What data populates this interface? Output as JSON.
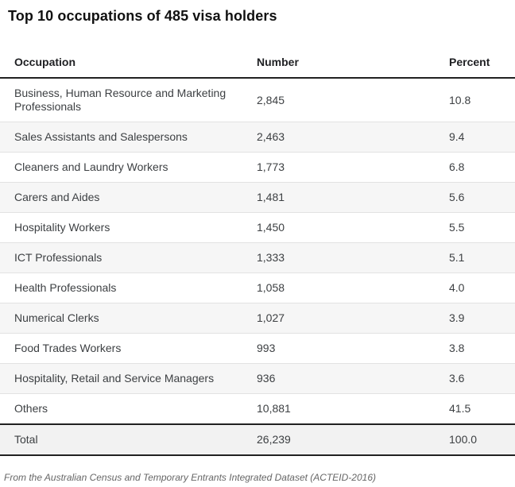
{
  "title": "Top 10 occupations of 485 visa holders",
  "table": {
    "columns": [
      "Occupation",
      "Number",
      "Percent"
    ],
    "rows": [
      [
        "Business, Human Resource and Marketing Professionals",
        "2,845",
        "10.8"
      ],
      [
        "Sales Assistants and Salespersons",
        "2,463",
        "9.4"
      ],
      [
        "Cleaners and Laundry Workers",
        "1,773",
        "6.8"
      ],
      [
        "Carers and Aides",
        "1,481",
        "5.6"
      ],
      [
        "Hospitality Workers",
        "1,450",
        "5.5"
      ],
      [
        "ICT Professionals",
        "1,333",
        "5.1"
      ],
      [
        "Health Professionals",
        "1,058",
        "4.0"
      ],
      [
        "Numerical Clerks",
        "1,027",
        "3.9"
      ],
      [
        "Food Trades Workers",
        "993",
        "3.8"
      ],
      [
        "Hospitality, Retail and Service Managers",
        "936",
        "3.6"
      ],
      [
        "Others",
        "10,881",
        "41.5"
      ]
    ],
    "total": [
      "Total",
      "26,239",
      "100.0"
    ]
  },
  "footer": "From the Australian Census and Temporary Entrants Integrated Dataset (ACTEID-2016)",
  "colors": {
    "header_border": "#212121",
    "row_divider": "#e2e2e2",
    "stripe_bg": "#f6f6f6",
    "total_bg": "#f2f2f2",
    "body_text": "#3d4043",
    "header_text": "#202124",
    "footer_text": "#666666"
  },
  "chart_data": {
    "type": "table",
    "title": "Top 10 occupations of 485 visa holders",
    "columns": [
      "Occupation",
      "Number",
      "Percent"
    ],
    "rows": [
      [
        "Business, Human Resource and Marketing Professionals",
        2845,
        10.8
      ],
      [
        "Sales Assistants and Salespersons",
        2463,
        9.4
      ],
      [
        "Cleaners and Laundry Workers",
        1773,
        6.8
      ],
      [
        "Carers and Aides",
        1481,
        5.6
      ],
      [
        "Hospitality Workers",
        1450,
        5.5
      ],
      [
        "ICT Professionals",
        1333,
        5.1
      ],
      [
        "Health Professionals",
        1058,
        4.0
      ],
      [
        "Numerical Clerks",
        1027,
        3.9
      ],
      [
        "Food Trades Workers",
        993,
        3.8
      ],
      [
        "Hospitality, Retail and Service Managers",
        936,
        3.6
      ],
      [
        "Others",
        10881,
        41.5
      ]
    ],
    "total_row": [
      "Total",
      26239,
      100.0
    ],
    "source_note": "From the Australian Census and Temporary Entrants Integrated Dataset (ACTEID-2016)"
  }
}
